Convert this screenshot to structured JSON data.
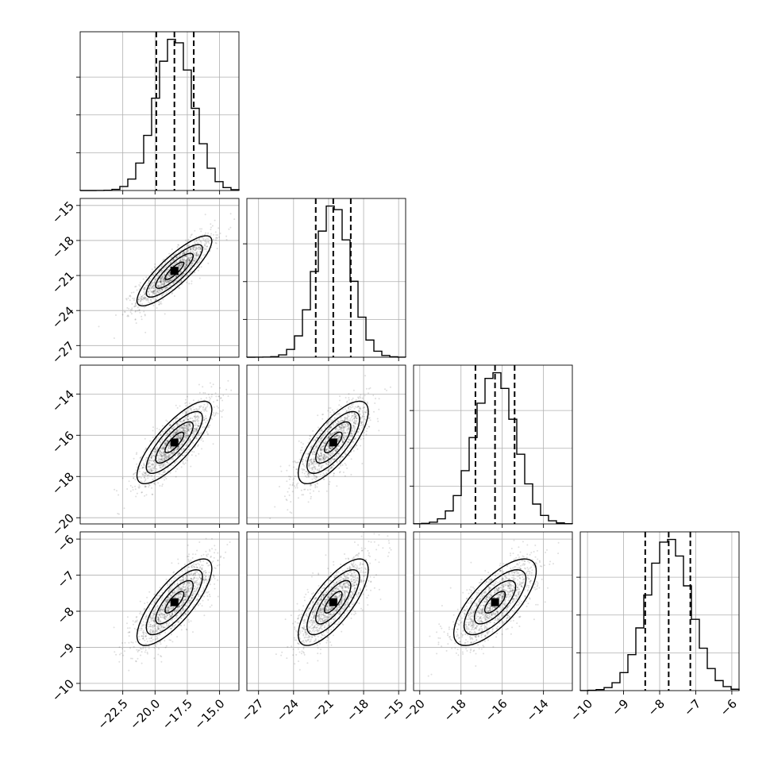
{
  "chart_data": {
    "type": "corner",
    "title": "",
    "parameters": [
      {
        "ticks": [
          -22.5,
          -20.0,
          -17.5,
          -15.0
        ],
        "tick_labels": [
          "−22.5",
          "−20.0",
          "−17.5",
          "−15.0"
        ],
        "range": [
          -25.8,
          -13.5
        ],
        "mean": -18.5,
        "sd": 1.45,
        "quantiles": [
          -19.9,
          -18.5,
          -17.0
        ],
        "hist_peak_bin": 20
      },
      {
        "ticks": [
          -27,
          -24,
          -21,
          -18,
          -15
        ],
        "tick_labels": [
          "−27",
          "−24",
          "−21",
          "−18",
          "−15"
        ],
        "range": [
          -28.0,
          -14.4
        ],
        "mean": -20.6,
        "sd": 1.5,
        "quantiles": [
          -22.1,
          -20.6,
          -19.1
        ],
        "hist_peak_bin": 20
      },
      {
        "ticks": [
          -20,
          -18,
          -16,
          -14
        ],
        "tick_labels": [
          "−20",
          "−18",
          "−16",
          "−14"
        ],
        "range": [
          -20.3,
          -12.6
        ],
        "mean": -16.35,
        "sd": 1.0,
        "quantiles": [
          -17.3,
          -16.35,
          -15.4
        ],
        "hist_peak_bin": 20
      },
      {
        "ticks": [
          -10,
          -9,
          -8,
          -7,
          -6
        ],
        "tick_labels": [
          "−10",
          "−9",
          "−8",
          "−7",
          "−6"
        ],
        "range": [
          -10.2,
          -5.8
        ],
        "mean": -7.75,
        "sd": 0.6,
        "quantiles": [
          -8.4,
          -7.75,
          -7.15
        ],
        "hist_peak_bin": 20
      }
    ],
    "correlations": [
      [
        1,
        0.85,
        0.8,
        0.78
      ],
      [
        0.85,
        1,
        0.75,
        0.75
      ],
      [
        0.8,
        0.75,
        1,
        0.72
      ],
      [
        0.78,
        0.75,
        0.72,
        1
      ]
    ],
    "grid": true,
    "contour_levels": [
      0.5,
      1.0,
      1.5,
      2.0
    ]
  }
}
